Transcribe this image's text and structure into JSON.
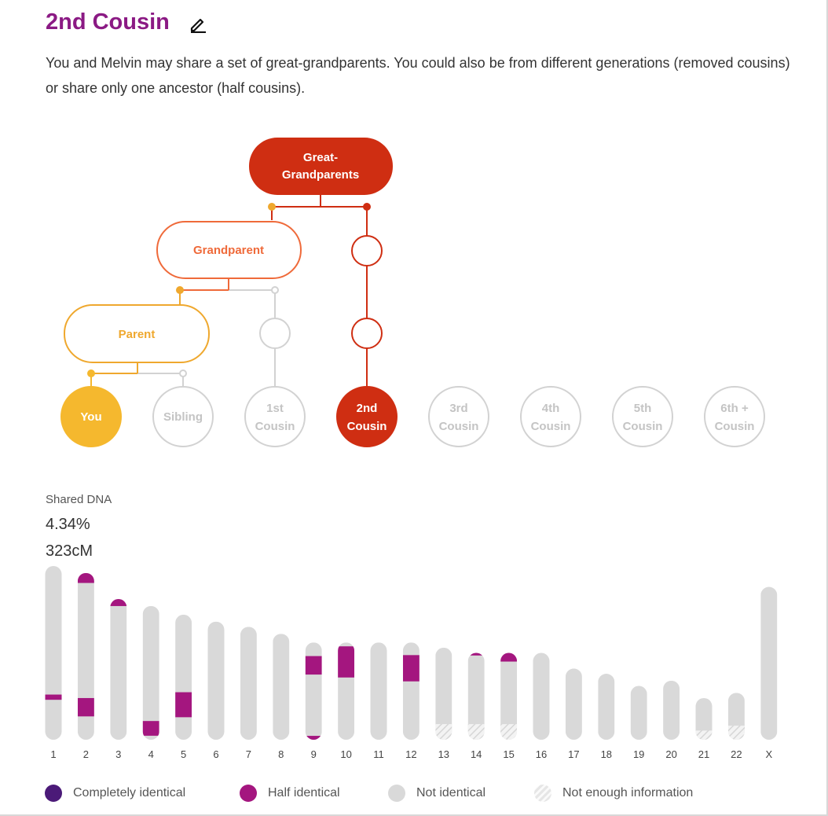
{
  "header": {
    "title": "2nd Cousin",
    "description": "You and Melvin may share a set of great-grandparents. You could also be from different generations (removed cousins) or share only one ancestor (half cousins)."
  },
  "tree": {
    "great_grandparents": [
      "Great-",
      "Grandparents"
    ],
    "grandparent": "Grandparent",
    "parent": "Parent",
    "relatives": [
      {
        "line1": "You",
        "line2": "",
        "state": "you"
      },
      {
        "line1": "Sibling",
        "line2": "",
        "state": "inactive"
      },
      {
        "line1": "1st",
        "line2": "Cousin",
        "state": "inactive"
      },
      {
        "line1": "2nd",
        "line2": "Cousin",
        "state": "selected"
      },
      {
        "line1": "3rd",
        "line2": "Cousin",
        "state": "inactive"
      },
      {
        "line1": "4th",
        "line2": "Cousin",
        "state": "inactive"
      },
      {
        "line1": "5th",
        "line2": "Cousin",
        "state": "inactive"
      },
      {
        "line1": "6th +",
        "line2": "Cousin",
        "state": "inactive"
      }
    ],
    "colors": {
      "great_grandparents": "#cf2e12",
      "grandparent": "#ef6a3a",
      "parent": "#efa82e",
      "you": "#f5b82e",
      "inactive": "#d2d2d2"
    }
  },
  "shared_dna": {
    "label": "Shared DNA",
    "percent": "4.34%",
    "cm": "323cM"
  },
  "chart_data": {
    "type": "bar",
    "categories": [
      "1",
      "2",
      "3",
      "4",
      "5",
      "6",
      "7",
      "8",
      "9",
      "10",
      "11",
      "12",
      "13",
      "14",
      "15",
      "16",
      "17",
      "18",
      "19",
      "20",
      "21",
      "22",
      "X"
    ],
    "relative_length": [
      1.0,
      0.96,
      0.81,
      0.77,
      0.72,
      0.68,
      0.65,
      0.61,
      0.56,
      0.56,
      0.56,
      0.56,
      0.53,
      0.5,
      0.5,
      0.5,
      0.41,
      0.38,
      0.31,
      0.34,
      0.24,
      0.27,
      0.88
    ],
    "segments": {
      "1": [
        {
          "start": 0.74,
          "end": 0.77,
          "type": "half"
        }
      ],
      "2": [
        {
          "start": 0.0,
          "end": 0.06,
          "type": "half"
        },
        {
          "start": 0.75,
          "end": 0.86,
          "type": "half"
        }
      ],
      "3": [
        {
          "start": 0.0,
          "end": 0.05,
          "type": "half"
        }
      ],
      "4": [
        {
          "start": 0.86,
          "end": 0.97,
          "type": "half"
        }
      ],
      "5": [
        {
          "start": 0.62,
          "end": 0.82,
          "type": "half"
        }
      ],
      "9": [
        {
          "start": 0.14,
          "end": 0.33,
          "type": "half"
        },
        {
          "start": 0.96,
          "end": 1.0,
          "type": "half"
        }
      ],
      "10": [
        {
          "start": 0.04,
          "end": 0.36,
          "type": "half"
        }
      ],
      "12": [
        {
          "start": 0.13,
          "end": 0.4,
          "type": "half"
        }
      ],
      "13": [
        {
          "start": 0.83,
          "end": 1.0,
          "type": "noinfo"
        }
      ],
      "14": [
        {
          "start": 0.0,
          "end": 0.03,
          "type": "half"
        },
        {
          "start": 0.82,
          "end": 1.0,
          "type": "noinfo"
        }
      ],
      "15": [
        {
          "start": 0.0,
          "end": 0.1,
          "type": "half"
        },
        {
          "start": 0.82,
          "end": 1.0,
          "type": "noinfo"
        }
      ],
      "21": [
        {
          "start": 0.78,
          "end": 1.0,
          "type": "noinfo"
        }
      ],
      "22": [
        {
          "start": 0.7,
          "end": 1.0,
          "type": "noinfo"
        }
      ]
    },
    "colors": {
      "not_identical": "#d9d9d9",
      "half": "#a4167f",
      "complete": "#4b1a78"
    }
  },
  "legend": [
    {
      "label": "Completely identical",
      "color": "#4b1a78",
      "kind": "complete"
    },
    {
      "label": "Half identical",
      "color": "#a4167f",
      "kind": "half"
    },
    {
      "label": "Not identical",
      "color": "#d9d9d9",
      "kind": "not"
    },
    {
      "label": "Not enough information",
      "color": "#e6e6e6",
      "kind": "noinfo"
    }
  ]
}
